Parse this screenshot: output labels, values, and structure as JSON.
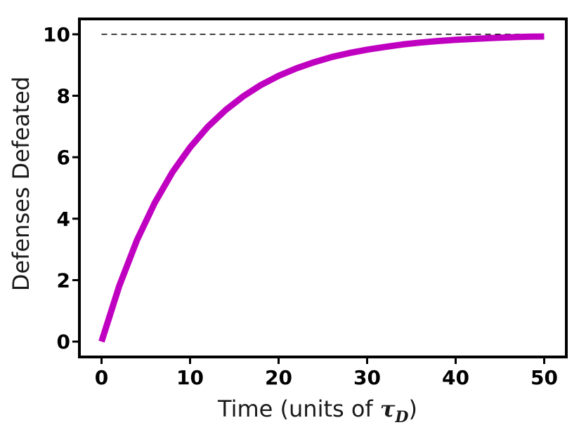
{
  "chart_data": {
    "type": "line",
    "xlabel_prefix": "Time (units of ",
    "xlabel_symbol": "τ",
    "xlabel_subscript": "D",
    "xlabel_suffix": ")",
    "ylabel": "Defenses Defeated",
    "xlim": [
      -2.5,
      52.5
    ],
    "ylim": [
      -0.5,
      10.5
    ],
    "xticks": [
      0,
      10,
      20,
      30,
      40,
      50
    ],
    "yticks": [
      0,
      2,
      4,
      6,
      8,
      10
    ],
    "grid": false,
    "series": [
      {
        "color": "#c000c0",
        "x": [
          0,
          2,
          4,
          6,
          8,
          10,
          12,
          14,
          16,
          18,
          20,
          22,
          24,
          26,
          28,
          30,
          32,
          34,
          36,
          38,
          40,
          42,
          44,
          46,
          48,
          50
        ],
        "y": [
          0,
          1.81,
          3.3,
          4.51,
          5.51,
          6.32,
          6.99,
          7.53,
          7.98,
          8.35,
          8.65,
          8.89,
          9.09,
          9.26,
          9.39,
          9.5,
          9.59,
          9.67,
          9.73,
          9.78,
          9.82,
          9.85,
          9.88,
          9.9,
          9.92,
          9.93
        ]
      }
    ],
    "reference_line": {
      "y": 10,
      "x_start": 0,
      "x_end": 50,
      "style": "dashed",
      "color": "#000000"
    }
  }
}
